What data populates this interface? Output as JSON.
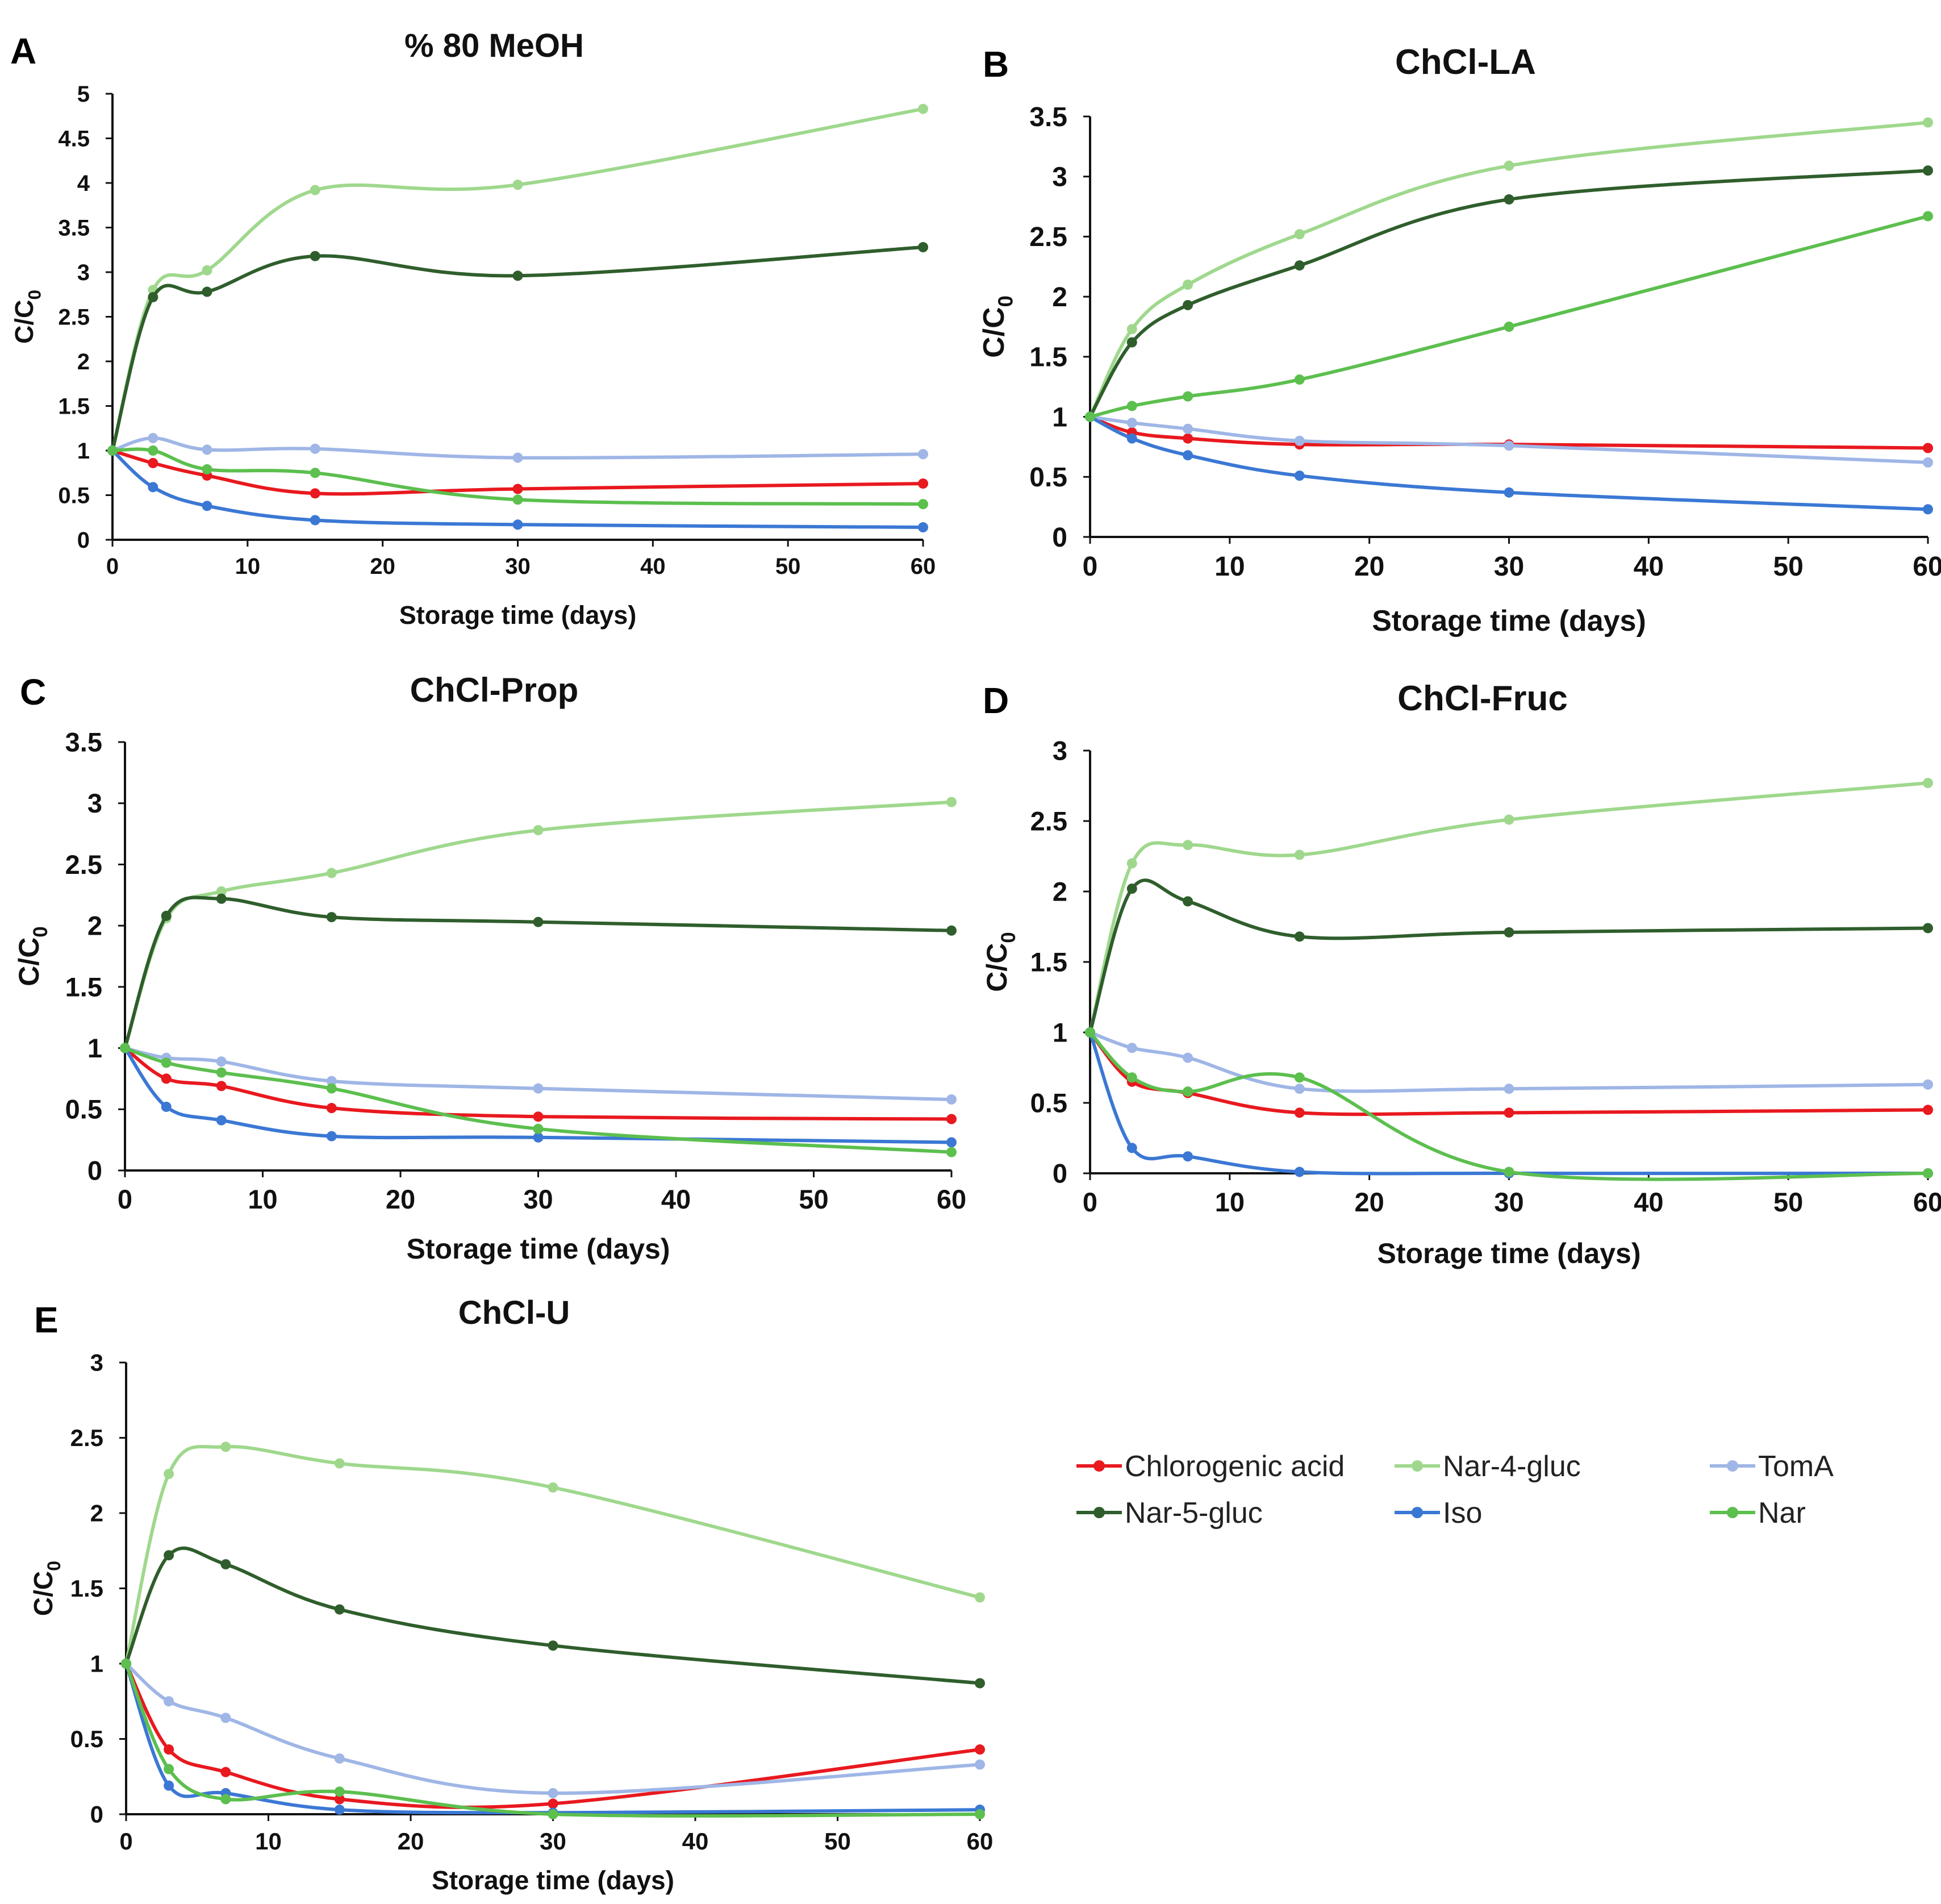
{
  "figure": {
    "colors": {
      "Chlorogenic acid": "#e8191f",
      "Nar-4-gluc": "#9fd88d",
      "TomA": "#9fb6e6",
      "Nar-5-gluc": "#2f5e2c",
      "Iso": "#3b78d4",
      "Nar": "#5cbf4e"
    }
  },
  "legend": {
    "entries": [
      "Chlorogenic acid",
      "Nar-4-gluc",
      "TomA",
      "Nar-5-gluc",
      "Iso",
      "Nar"
    ]
  },
  "chart_data": [
    {
      "panel": "A",
      "type": "line",
      "title": "% 80 MeOH",
      "xlabel": "Storage time (days)",
      "ylabel": "C/C",
      "ylabel_sub": "0",
      "xlim": [
        0,
        60
      ],
      "ylim": [
        0,
        5
      ],
      "xticks": [
        0,
        10,
        20,
        30,
        40,
        50,
        60
      ],
      "yticks": [
        0,
        0.5,
        1,
        1.5,
        2,
        2.5,
        3,
        3.5,
        4,
        4.5,
        5
      ],
      "ytick_labels": [
        "0",
        "0.5",
        "1",
        "1.5",
        "2",
        "2.5",
        "3",
        "3.5",
        "4",
        "4.5",
        "5"
      ],
      "x": [
        0,
        3,
        7,
        15,
        30,
        60
      ],
      "series": [
        {
          "name": "Chlorogenic acid",
          "values": [
            1,
            0.86,
            0.72,
            0.52,
            0.57,
            0.63
          ]
        },
        {
          "name": "Nar-4-gluc",
          "values": [
            1,
            2.8,
            3.02,
            3.92,
            3.98,
            4.83
          ]
        },
        {
          "name": "TomA",
          "values": [
            1,
            1.14,
            1.01,
            1.02,
            0.92,
            0.96
          ]
        },
        {
          "name": "Nar-5-gluc",
          "values": [
            1,
            2.72,
            2.78,
            3.18,
            2.96,
            3.28
          ]
        },
        {
          "name": "Iso",
          "values": [
            1,
            0.59,
            0.38,
            0.22,
            0.17,
            0.14
          ]
        },
        {
          "name": "Nar",
          "values": [
            1,
            1.0,
            0.79,
            0.75,
            0.45,
            0.4
          ]
        }
      ]
    },
    {
      "panel": "B",
      "type": "line",
      "title": "ChCl-LA",
      "xlabel": "Storage time (days)",
      "ylabel": "C/C",
      "ylabel_sub": "0",
      "xlim": [
        0,
        60
      ],
      "ylim": [
        0,
        3.5
      ],
      "xticks": [
        0,
        10,
        20,
        30,
        40,
        50,
        60
      ],
      "yticks": [
        0,
        0.5,
        1,
        1.5,
        2,
        2.5,
        3,
        3.5
      ],
      "ytick_labels": [
        "0",
        "0.5",
        "1",
        "1.5",
        "2",
        "2.5",
        "3",
        "3.5"
      ],
      "x": [
        0,
        3,
        7,
        15,
        30,
        60
      ],
      "series": [
        {
          "name": "Chlorogenic acid",
          "values": [
            1,
            0.87,
            0.82,
            0.77,
            0.77,
            0.74
          ]
        },
        {
          "name": "Nar-4-gluc",
          "values": [
            1,
            1.73,
            2.1,
            2.52,
            3.09,
            3.45
          ]
        },
        {
          "name": "TomA",
          "values": [
            1,
            0.95,
            0.9,
            0.8,
            0.76,
            0.62
          ]
        },
        {
          "name": "Nar-5-gluc",
          "values": [
            1,
            1.62,
            1.93,
            2.26,
            2.81,
            3.05
          ]
        },
        {
          "name": "Iso",
          "values": [
            1,
            0.82,
            0.68,
            0.51,
            0.37,
            0.23
          ]
        },
        {
          "name": "Nar",
          "values": [
            1,
            1.09,
            1.17,
            1.31,
            1.75,
            2.67
          ]
        }
      ]
    },
    {
      "panel": "C",
      "type": "line",
      "title": "ChCl-Prop",
      "xlabel": "Storage time (days)",
      "ylabel": "C/C",
      "ylabel_sub": "0",
      "xlim": [
        0,
        60
      ],
      "ylim": [
        0,
        3.5
      ],
      "xticks": [
        0,
        10,
        20,
        30,
        40,
        50,
        60
      ],
      "yticks": [
        0,
        0.5,
        1,
        1.5,
        2,
        2.5,
        3,
        3.5
      ],
      "ytick_labels": [
        "0",
        "0.5",
        "1",
        "1.5",
        "2",
        "2.5",
        "3",
        "3.5"
      ],
      "x": [
        0,
        3,
        7,
        15,
        30,
        60
      ],
      "series": [
        {
          "name": "Chlorogenic acid",
          "values": [
            1,
            0.75,
            0.69,
            0.51,
            0.44,
            0.42
          ]
        },
        {
          "name": "Nar-4-gluc",
          "values": [
            1,
            2.06,
            2.28,
            2.43,
            2.78,
            3.01
          ]
        },
        {
          "name": "TomA",
          "values": [
            1,
            0.92,
            0.89,
            0.73,
            0.67,
            0.58
          ]
        },
        {
          "name": "Nar-5-gluc",
          "values": [
            1,
            2.08,
            2.22,
            2.07,
            2.03,
            1.96
          ]
        },
        {
          "name": "Iso",
          "values": [
            1,
            0.52,
            0.41,
            0.28,
            0.27,
            0.23
          ]
        },
        {
          "name": "Nar",
          "values": [
            1,
            0.88,
            0.8,
            0.67,
            0.34,
            0.15
          ]
        }
      ]
    },
    {
      "panel": "D",
      "type": "line",
      "title": "ChCl-Fruc",
      "xlabel": "Storage time (days)",
      "ylabel": "C/C",
      "ylabel_sub": "0",
      "xlim": [
        0,
        60
      ],
      "ylim": [
        0,
        3
      ],
      "xticks": [
        0,
        10,
        20,
        30,
        40,
        50,
        60
      ],
      "yticks": [
        0,
        0.5,
        1,
        1.5,
        2,
        2.5,
        3
      ],
      "ytick_labels": [
        "0",
        "0.5",
        "1",
        "1.5",
        "2",
        "2.5",
        "3"
      ],
      "x": [
        0,
        3,
        7,
        15,
        30,
        60
      ],
      "series": [
        {
          "name": "Chlorogenic acid",
          "values": [
            1,
            0.65,
            0.57,
            0.43,
            0.43,
            0.45
          ]
        },
        {
          "name": "Nar-4-gluc",
          "values": [
            1,
            2.2,
            2.33,
            2.26,
            2.51,
            2.77
          ]
        },
        {
          "name": "TomA",
          "values": [
            1,
            0.89,
            0.82,
            0.6,
            0.6,
            0.63
          ]
        },
        {
          "name": "Nar-5-gluc",
          "values": [
            1,
            2.02,
            1.93,
            1.68,
            1.71,
            1.74
          ]
        },
        {
          "name": "Iso",
          "values": [
            1,
            0.18,
            0.12,
            0.01,
            0.0,
            0.0
          ]
        },
        {
          "name": "Nar",
          "values": [
            1,
            0.68,
            0.58,
            0.68,
            0.01,
            0.0
          ]
        }
      ]
    },
    {
      "panel": "E",
      "type": "line",
      "title": "ChCl-U",
      "xlabel": "Storage time (days)",
      "ylabel": "C/C",
      "ylabel_sub": "0",
      "xlim": [
        0,
        60
      ],
      "ylim": [
        0,
        3
      ],
      "xticks": [
        0,
        10,
        20,
        30,
        40,
        50,
        60
      ],
      "yticks": [
        0,
        0.5,
        1,
        1.5,
        2,
        2.5,
        3
      ],
      "ytick_labels": [
        "0",
        "0.5",
        "1",
        "1.5",
        "2",
        "2.5",
        "3"
      ],
      "x": [
        0,
        3,
        7,
        15,
        30,
        60
      ],
      "series": [
        {
          "name": "Chlorogenic acid",
          "values": [
            1,
            0.43,
            0.28,
            0.1,
            0.07,
            0.43
          ]
        },
        {
          "name": "Nar-4-gluc",
          "values": [
            1,
            2.26,
            2.44,
            2.33,
            2.17,
            1.44
          ]
        },
        {
          "name": "TomA",
          "values": [
            1,
            0.75,
            0.64,
            0.37,
            0.14,
            0.33
          ]
        },
        {
          "name": "Nar-5-gluc",
          "values": [
            1,
            1.72,
            1.66,
            1.36,
            1.12,
            0.87
          ]
        },
        {
          "name": "Iso",
          "values": [
            1,
            0.19,
            0.14,
            0.03,
            0.01,
            0.03
          ]
        },
        {
          "name": "Nar",
          "values": [
            1,
            0.3,
            0.1,
            0.15,
            0.0,
            0.0
          ]
        }
      ]
    }
  ]
}
